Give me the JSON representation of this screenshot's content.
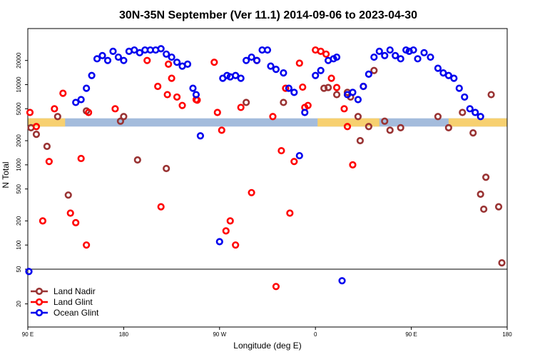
{
  "chart_data": {
    "type": "scatter",
    "title": "30N-35N September (Ver 11.1)   2014-09-06 to 2023-04-30",
    "xlabel": "Longitude (deg E)",
    "ylabel": "N Total",
    "x_tick_labels": [
      "90 E",
      "180",
      "90 W",
      "0",
      "90 E",
      "180"
    ],
    "y_tick_labels": [
      "20",
      "50",
      "100",
      "200",
      "500",
      "1000",
      "2000",
      "5000",
      "10000",
      "20000"
    ],
    "x_axis_span_deg": 450,
    "y_upper_scale": "log",
    "y_upper_range": [
      50,
      50000
    ],
    "y_lower_range": [
      0,
      50
    ],
    "grid": false,
    "legend_position": "bottom-left",
    "colors": {
      "land_nadir": "#993333",
      "land_glint": "#ff0000",
      "ocean_glint": "#0000ee",
      "band_ocean": "#a4bcdc",
      "band_land": "#f7d070"
    },
    "band": {
      "y_range": [
        3000,
        3800
      ],
      "land_segments_deg": [
        [
          0,
          35
        ],
        [
          272,
          330
        ],
        [
          395,
          450
        ]
      ]
    },
    "series": [
      {
        "name": "Land Nadir",
        "color": "#993333",
        "points": [
          [
            3,
            2900
          ],
          [
            8,
            2400
          ],
          [
            18,
            1700
          ],
          [
            28,
            4000
          ],
          [
            38,
            420
          ],
          [
            55,
            4700
          ],
          [
            87,
            3500
          ],
          [
            90,
            4000
          ],
          [
            103,
            1150
          ],
          [
            130,
            900
          ],
          [
            205,
            6000
          ],
          [
            240,
            6000
          ],
          [
            278,
            9000
          ],
          [
            282,
            9200
          ],
          [
            290,
            7500
          ],
          [
            300,
            8000
          ],
          [
            303,
            7000
          ],
          [
            310,
            4000
          ],
          [
            312,
            2000
          ],
          [
            320,
            3000
          ],
          [
            325,
            15000
          ],
          [
            335,
            3500
          ],
          [
            340,
            2700
          ],
          [
            350,
            2900
          ],
          [
            385,
            4000
          ],
          [
            395,
            2900
          ],
          [
            408,
            4500
          ],
          [
            418,
            2500
          ],
          [
            425,
            430
          ],
          [
            428,
            280
          ],
          [
            430,
            700
          ],
          [
            435,
            7500
          ],
          [
            442,
            300
          ],
          [
            445,
            60
          ]
        ]
      },
      {
        "name": "Land Glint",
        "color": "#ff0000",
        "points": [
          [
            2,
            4500
          ],
          [
            8,
            3000
          ],
          [
            14,
            200
          ],
          [
            20,
            1100
          ],
          [
            25,
            5000
          ],
          [
            33,
            7800
          ],
          [
            40,
            250
          ],
          [
            45,
            190
          ],
          [
            50,
            1200
          ],
          [
            55,
            100
          ],
          [
            57,
            4500
          ],
          [
            82,
            5000
          ],
          [
            112,
            20000
          ],
          [
            122,
            9500
          ],
          [
            125,
            300
          ],
          [
            131,
            7500
          ],
          [
            132,
            18000
          ],
          [
            135,
            12000
          ],
          [
            140,
            7000
          ],
          [
            145,
            5500
          ],
          [
            158,
            6500
          ],
          [
            159,
            6400
          ],
          [
            175,
            19000
          ],
          [
            178,
            4500
          ],
          [
            182,
            2700
          ],
          [
            186,
            150
          ],
          [
            190,
            200
          ],
          [
            195,
            100
          ],
          [
            200,
            5200
          ],
          [
            210,
            450
          ],
          [
            215,
            20000
          ],
          [
            230,
            4000
          ],
          [
            233,
            35
          ],
          [
            238,
            1500
          ],
          [
            242,
            9000
          ],
          [
            246,
            250
          ],
          [
            250,
            1100
          ],
          [
            255,
            18500
          ],
          [
            258,
            9300
          ],
          [
            260,
            5200
          ],
          [
            263,
            5500
          ],
          [
            270,
            27000
          ],
          [
            275,
            26000
          ],
          [
            280,
            24000
          ],
          [
            285,
            12000
          ],
          [
            290,
            9200
          ],
          [
            297,
            5000
          ],
          [
            300,
            3000
          ],
          [
            305,
            1000
          ],
          [
            315,
            9500
          ]
        ]
      },
      {
        "name": "Ocean Glint",
        "color": "#0000ee",
        "points": [
          [
            1,
            48
          ],
          [
            45,
            6000
          ],
          [
            50,
            6500
          ],
          [
            55,
            9000
          ],
          [
            60,
            13000
          ],
          [
            65,
            21000
          ],
          [
            70,
            23000
          ],
          [
            75,
            20000
          ],
          [
            80,
            26000
          ],
          [
            85,
            22000
          ],
          [
            90,
            20000
          ],
          [
            95,
            26000
          ],
          [
            100,
            27000
          ],
          [
            105,
            25000
          ],
          [
            110,
            27000
          ],
          [
            115,
            27000
          ],
          [
            120,
            27000
          ],
          [
            125,
            28000
          ],
          [
            130,
            24000
          ],
          [
            135,
            22000
          ],
          [
            140,
            19000
          ],
          [
            145,
            17000
          ],
          [
            150,
            18000
          ],
          [
            155,
            9000
          ],
          [
            158,
            7500
          ],
          [
            162,
            2300
          ],
          [
            180,
            110
          ],
          [
            183,
            12000
          ],
          [
            187,
            13000
          ],
          [
            190,
            12500
          ],
          [
            195,
            13000
          ],
          [
            200,
            12000
          ],
          [
            205,
            20000
          ],
          [
            210,
            22000
          ],
          [
            215,
            20000
          ],
          [
            220,
            27000
          ],
          [
            225,
            27000
          ],
          [
            228,
            17000
          ],
          [
            233,
            15500
          ],
          [
            240,
            14000
          ],
          [
            245,
            9000
          ],
          [
            250,
            8000
          ],
          [
            255,
            1300
          ],
          [
            260,
            4500
          ],
          [
            270,
            13000
          ],
          [
            275,
            15000
          ],
          [
            282,
            20000
          ],
          [
            287,
            21000
          ],
          [
            290,
            22000
          ],
          [
            295,
            40
          ],
          [
            300,
            7500
          ],
          [
            305,
            8000
          ],
          [
            310,
            6500
          ],
          [
            315,
            9500
          ],
          [
            320,
            13500
          ],
          [
            325,
            22000
          ],
          [
            330,
            26000
          ],
          [
            335,
            23000
          ],
          [
            340,
            27000
          ],
          [
            345,
            23000
          ],
          [
            350,
            21000
          ],
          [
            355,
            27000
          ],
          [
            358,
            26000
          ],
          [
            362,
            27000
          ],
          [
            366,
            21000
          ],
          [
            372,
            25000
          ],
          [
            378,
            22000
          ],
          [
            385,
            16000
          ],
          [
            390,
            14000
          ],
          [
            395,
            13000
          ],
          [
            400,
            12000
          ],
          [
            405,
            9000
          ],
          [
            410,
            7000
          ],
          [
            415,
            5000
          ],
          [
            420,
            4500
          ],
          [
            425,
            4000
          ]
        ]
      }
    ]
  }
}
